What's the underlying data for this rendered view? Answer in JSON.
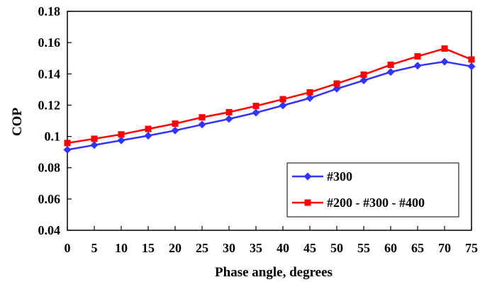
{
  "chart_data": {
    "type": "line",
    "xlabel": "Phase angle, degrees",
    "ylabel": "COP",
    "x": [
      0,
      5,
      10,
      15,
      20,
      25,
      30,
      35,
      40,
      45,
      50,
      55,
      60,
      65,
      70,
      75
    ],
    "xlim": [
      0,
      75
    ],
    "ylim": [
      0.04,
      0.18
    ],
    "x_ticks": [
      "0",
      "5",
      "10",
      "15",
      "20",
      "25",
      "30",
      "35",
      "40",
      "45",
      "50",
      "55",
      "60",
      "65",
      "70",
      "75"
    ],
    "y_ticks": [
      "0.04",
      "0.06",
      "0.08",
      "0.1",
      "0.12",
      "0.14",
      "0.16",
      "0.18"
    ],
    "grid": false,
    "legend_position": "bottom-right",
    "series": [
      {
        "name": "#300",
        "color": "#3333ff",
        "marker": "diamond",
        "values": [
          0.0915,
          0.0945,
          0.0975,
          0.1005,
          0.1038,
          0.1076,
          0.1112,
          0.1152,
          0.1198,
          0.1245,
          0.1305,
          0.1358,
          0.1412,
          0.1452,
          0.1478,
          0.1448
        ]
      },
      {
        "name": "#200 - #300 - #400",
        "color": "#ff0000",
        "marker": "square",
        "values": [
          0.0958,
          0.0985,
          0.1013,
          0.1048,
          0.1082,
          0.1122,
          0.1155,
          0.1195,
          0.1238,
          0.1282,
          0.1338,
          0.1395,
          0.1458,
          0.1512,
          0.1562,
          0.1492
        ]
      }
    ]
  }
}
